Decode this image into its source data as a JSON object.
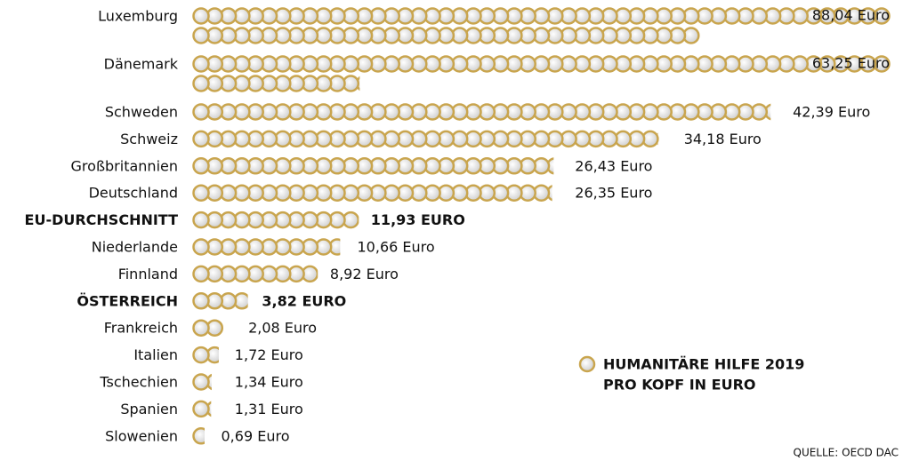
{
  "chart_data": {
    "type": "pictogram",
    "categories": [
      "Luxemburg",
      "Dänemark",
      "Schweden",
      "Schweiz",
      "Großbritannien",
      "Deutschland",
      "EU-DURCHSCHNITT",
      "Niederlande",
      "Finnland",
      "ÖSTERREICH",
      "Frankreich",
      "Italien",
      "Tschechien",
      "Spanien",
      "Slowenien"
    ],
    "values": [
      88.04,
      63.25,
      42.39,
      34.18,
      26.43,
      26.35,
      11.93,
      10.66,
      8.92,
      3.82,
      2.08,
      1.72,
      1.34,
      1.31,
      0.69
    ],
    "value_labels": [
      "88,04 Euro",
      "63,25 Euro",
      "42,39 Euro",
      "34,18 Euro",
      "26,43 Euro",
      "26,35 Euro",
      "11,93 EURO",
      "10,66 Euro",
      "8,92 Euro",
      "3,82 EURO",
      "2,08 Euro",
      "1,72 Euro",
      "1,34 Euro",
      "1,31 Euro",
      "0,69 Euro"
    ],
    "bold": [
      false,
      false,
      false,
      false,
      false,
      false,
      true,
      false,
      false,
      true,
      false,
      false,
      false,
      false,
      false
    ],
    "color": "#c9a54e",
    "legend": [
      "HUMANITÄRE HILFE 2019",
      "PRO KOPF IN EURO"
    ],
    "source": "QUELLE: OECD DAC"
  }
}
